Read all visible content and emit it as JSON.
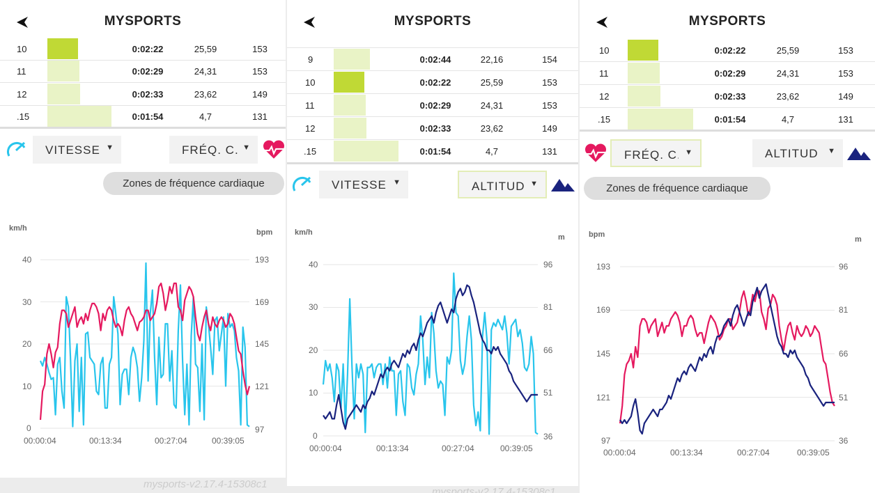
{
  "app_title": "MYSPORTS",
  "version": "mysports-v2.17.4-15308c1",
  "screens": [
    {
      "rows": [
        {
          "num": "10",
          "time": "0:02:22",
          "speed": "25,59",
          "hr": "153",
          "bar": 0.4,
          "hi": true
        },
        {
          "num": "11",
          "time": "0:02:29",
          "speed": "24,31",
          "hr": "153",
          "bar": 0.42,
          "hi": false
        },
        {
          "num": "12",
          "time": "0:02:33",
          "speed": "23,62",
          "hr": "149",
          "bar": 0.43,
          "hi": false
        },
        {
          "num": ".15",
          "time": "0:01:54",
          "speed": "4,7",
          "hr": "131",
          "bar": 0.84,
          "hi": false
        }
      ],
      "left_select": "VITESSE",
      "right_select": "FRÉQ. C.",
      "zones_button": "Zones de fréquence cardiaque",
      "chart_data": {
        "type": "line",
        "left_unit": "km/h",
        "right_unit": "bpm",
        "left_ticks": [
          "40",
          "30",
          "20",
          "10",
          "0"
        ],
        "right_ticks": [
          "193",
          "169",
          "145",
          "121",
          "97"
        ],
        "x_ticks": [
          "00:00:04",
          "00:13:34",
          "00:27:04",
          "00:39:05"
        ],
        "series": [
          {
            "color": "#29c5ec",
            "axis": "left",
            "values": [
              0.4,
              0.37,
              0.42,
              0.38,
              0.33,
              0.29,
              0.3,
              0.08,
              0.38,
              0.42,
              0.22,
              0.12,
              0.78,
              0.72,
              0.4,
              0.01,
              0.4,
              0.5,
              0.1,
              0.42,
              0.02,
              0.56,
              0.57,
              0.42,
              0.4,
              0.38,
              0.22,
              0.2,
              0.38,
              0.42,
              0.12,
              0.12,
              0.38,
              0.42,
              0.78,
              0.68,
              0.56,
              0.14,
              0.32,
              0.35,
              0.35,
              0.2,
              0.42,
              0.48,
              0.44,
              0.36,
              0.16,
              0.3,
              0.52,
              0.98,
              0.28,
              0.68,
              0.82,
              0.42,
              0.14,
              0.54,
              0.3,
              0.32,
              0.62,
              0.62,
              0.28,
              0.46,
              0.14,
              0.12,
              0.58,
              0.85,
              0.4,
              0.08,
              0.38,
              0.02,
              0.55,
              0.78,
              0.38,
              0.36,
              0.1,
              0.5,
              0.05,
              0.72,
              0.62,
              0.48,
              0.32,
              0.64,
              0.66,
              0.46,
              0.56,
              0.66,
              0.25,
              0.68,
              0.6,
              0.62,
              0.58,
              0.42,
              0.34,
              0.02,
              0.6,
              0.48,
              0.02,
              0.01
            ]
          },
          {
            "color": "#e5195f",
            "axis": "right",
            "values": [
              0.05,
              0.22,
              0.26,
              0.44,
              0.5,
              0.44,
              0.36,
              0.45,
              0.48,
              0.62,
              0.7,
              0.7,
              0.68,
              0.6,
              0.64,
              0.68,
              0.72,
              0.6,
              0.64,
              0.66,
              0.62,
              0.68,
              0.64,
              0.7,
              0.74,
              0.74,
              0.72,
              0.68,
              0.58,
              0.68,
              0.64,
              0.7,
              0.72,
              0.7,
              0.64,
              0.6,
              0.62,
              0.6,
              0.55,
              0.64,
              0.7,
              0.72,
              0.68,
              0.66,
              0.62,
              0.58,
              0.63,
              0.64,
              0.66,
              0.7,
              0.7,
              0.64,
              0.66,
              0.68,
              0.74,
              0.84,
              0.86,
              0.8,
              0.7,
              0.76,
              0.84,
              0.8,
              0.86,
              0.86,
              0.72,
              0.7,
              0.64,
              0.76,
              0.8,
              0.84,
              0.82,
              0.78,
              0.66,
              0.56,
              0.52,
              0.6,
              0.66,
              0.7,
              0.62,
              0.58,
              0.66,
              0.62,
              0.6,
              0.64,
              0.66,
              0.64,
              0.6,
              0.62,
              0.68,
              0.66,
              0.62,
              0.54,
              0.46,
              0.44,
              0.34,
              0.26,
              0.2,
              0.25
            ]
          }
        ]
      }
    },
    {
      "rows": [
        {
          "num": "9",
          "time": "0:02:44",
          "speed": "22,16",
          "hr": "154",
          "bar": 0.47,
          "hi": false
        },
        {
          "num": "10",
          "time": "0:02:22",
          "speed": "25,59",
          "hr": "153",
          "bar": 0.4,
          "hi": true
        },
        {
          "num": "11",
          "time": "0:02:29",
          "speed": "24,31",
          "hr": "153",
          "bar": 0.42,
          "hi": false
        },
        {
          "num": "12",
          "time": "0:02:33",
          "speed": "23,62",
          "hr": "149",
          "bar": 0.43,
          "hi": false
        },
        {
          "num": ".15",
          "time": "0:01:54",
          "speed": "4,7",
          "hr": "131",
          "bar": 0.84,
          "hi": false
        }
      ],
      "left_select": "VITESSE",
      "right_select": "ALTITUD",
      "chart_data": {
        "type": "line",
        "left_unit": "km/h",
        "right_unit": "m",
        "left_ticks": [
          "40",
          "30",
          "20",
          "10",
          "0"
        ],
        "right_ticks": [
          "96",
          "81",
          "66",
          "51",
          "36"
        ],
        "x_ticks": [
          "00:00:04",
          "00:13:34",
          "00:27:04",
          "00:39:05"
        ],
        "series": [
          {
            "color": "#29c5ec",
            "axis": "left",
            "values": [
              0.3,
              0.44,
              0.38,
              0.42,
              0.34,
              0.2,
              0.42,
              0.38,
              0.16,
              0.42,
              0.06,
              0.36,
              0.8,
              0.4,
              0.1,
              0.42,
              0.34,
              0.42,
              0.36,
              0.02,
              0.4,
              0.4,
              0.42,
              0.34,
              0.4,
              0.42,
              0.42,
              0.3,
              0.42,
              0.28,
              0.46,
              0.38,
              0.38,
              0.12,
              0.36,
              0.38,
              0.2,
              0.12,
              0.42,
              0.4,
              0.28,
              0.24,
              0.36,
              0.42,
              0.7,
              0.56,
              0.3,
              0.46,
              0.34,
              0.72,
              0.6,
              0.38,
              0.28,
              0.32,
              0.3,
              0.12,
              0.46,
              0.42,
              0.5,
              0.95,
              0.72,
              0.7,
              0.44,
              0.36,
              0.42,
              0.58,
              0.7,
              0.56,
              0.18,
              0.06,
              0.14,
              0.03,
              0.58,
              0.72,
              0.56,
              0.01,
              0.62,
              0.66,
              0.64,
              0.68,
              0.65,
              0.62,
              0.7,
              0.6,
              0.42,
              0.64,
              0.66,
              0.68,
              0.58,
              0.62,
              0.54,
              0.4,
              0.38,
              0.42,
              0.58,
              0.48,
              0.02,
              0.01
            ]
          },
          {
            "color": "#1a237e",
            "axis": "right",
            "values": [
              0.12,
              0.1,
              0.12,
              0.14,
              0.1,
              0.1,
              0.18,
              0.24,
              0.16,
              0.08,
              0.04,
              0.1,
              0.12,
              0.14,
              0.16,
              0.18,
              0.16,
              0.14,
              0.18,
              0.16,
              0.2,
              0.22,
              0.26,
              0.24,
              0.28,
              0.32,
              0.36,
              0.34,
              0.38,
              0.4,
              0.38,
              0.42,
              0.44,
              0.42,
              0.4,
              0.44,
              0.48,
              0.46,
              0.5,
              0.48,
              0.52,
              0.54,
              0.5,
              0.56,
              0.6,
              0.58,
              0.62,
              0.66,
              0.68,
              0.7,
              0.66,
              0.72,
              0.76,
              0.78,
              0.74,
              0.7,
              0.66,
              0.7,
              0.74,
              0.72,
              0.8,
              0.84,
              0.86,
              0.82,
              0.84,
              0.88,
              0.87,
              0.82,
              0.78,
              0.72,
              0.66,
              0.6,
              0.56,
              0.54,
              0.5,
              0.5,
              0.48,
              0.52,
              0.5,
              0.52,
              0.48,
              0.46,
              0.44,
              0.42,
              0.38,
              0.36,
              0.32,
              0.3,
              0.28,
              0.26,
              0.24,
              0.22,
              0.2,
              0.22,
              0.24,
              0.24,
              0.24,
              0.24
            ]
          }
        ]
      }
    },
    {
      "rows": [
        {
          "num": "10",
          "time": "0:02:22",
          "speed": "25,59",
          "hr": "153",
          "bar": 0.4,
          "hi": true
        },
        {
          "num": "11",
          "time": "0:02:29",
          "speed": "24,31",
          "hr": "153",
          "bar": 0.42,
          "hi": false
        },
        {
          "num": "12",
          "time": "0:02:33",
          "speed": "23,62",
          "hr": "149",
          "bar": 0.43,
          "hi": false
        },
        {
          "num": ".15",
          "time": "0:01:54",
          "speed": "4,7",
          "hr": "131",
          "bar": 0.84,
          "hi": false
        }
      ],
      "left_select": "FRÉQ. C.",
      "right_select": "ALTITUD",
      "zones_button": "Zones de fréquence cardiaque",
      "chart_data": {
        "type": "line",
        "left_unit": "bpm",
        "right_unit": "m",
        "left_ticks": [
          "193",
          "169",
          "145",
          "121",
          "97"
        ],
        "right_ticks": [
          "96",
          "81",
          "66",
          "51",
          "36"
        ],
        "x_ticks": [
          "00:00:04",
          "00:13:34",
          "00:27:04",
          "00:39:05"
        ],
        "series": [
          {
            "color": "#e5195f",
            "axis": "left",
            "values": [
              0.1,
              0.2,
              0.38,
              0.44,
              0.46,
              0.5,
              0.42,
              0.54,
              0.48,
              0.66,
              0.7,
              0.7,
              0.68,
              0.62,
              0.66,
              0.68,
              0.7,
              0.6,
              0.64,
              0.68,
              0.62,
              0.66,
              0.66,
              0.7,
              0.72,
              0.74,
              0.72,
              0.68,
              0.6,
              0.66,
              0.66,
              0.7,
              0.72,
              0.7,
              0.64,
              0.6,
              0.62,
              0.62,
              0.56,
              0.62,
              0.68,
              0.72,
              0.7,
              0.68,
              0.64,
              0.58,
              0.6,
              0.64,
              0.66,
              0.7,
              0.7,
              0.64,
              0.66,
              0.68,
              0.74,
              0.82,
              0.86,
              0.8,
              0.72,
              0.76,
              0.84,
              0.8,
              0.86,
              0.86,
              0.74,
              0.7,
              0.64,
              0.76,
              0.78,
              0.84,
              0.82,
              0.78,
              0.66,
              0.58,
              0.52,
              0.6,
              0.66,
              0.68,
              0.62,
              0.58,
              0.66,
              0.62,
              0.6,
              0.62,
              0.66,
              0.64,
              0.6,
              0.62,
              0.66,
              0.64,
              0.62,
              0.54,
              0.46,
              0.44,
              0.36,
              0.28,
              0.22,
              0.2
            ]
          },
          {
            "color": "#1a237e",
            "axis": "right",
            "values": [
              0.12,
              0.1,
              0.12,
              0.1,
              0.12,
              0.14,
              0.2,
              0.24,
              0.16,
              0.06,
              0.04,
              0.1,
              0.12,
              0.14,
              0.16,
              0.18,
              0.16,
              0.14,
              0.18,
              0.18,
              0.2,
              0.22,
              0.26,
              0.24,
              0.28,
              0.32,
              0.36,
              0.34,
              0.38,
              0.4,
              0.38,
              0.42,
              0.44,
              0.42,
              0.4,
              0.44,
              0.48,
              0.46,
              0.5,
              0.48,
              0.52,
              0.54,
              0.5,
              0.56,
              0.6,
              0.6,
              0.62,
              0.66,
              0.68,
              0.7,
              0.66,
              0.72,
              0.76,
              0.78,
              0.74,
              0.7,
              0.66,
              0.7,
              0.74,
              0.72,
              0.8,
              0.84,
              0.88,
              0.82,
              0.86,
              0.88,
              0.9,
              0.84,
              0.78,
              0.72,
              0.66,
              0.6,
              0.56,
              0.54,
              0.5,
              0.5,
              0.48,
              0.52,
              0.5,
              0.52,
              0.48,
              0.46,
              0.44,
              0.42,
              0.38,
              0.36,
              0.32,
              0.3,
              0.28,
              0.26,
              0.24,
              0.22,
              0.2,
              0.22,
              0.22,
              0.22,
              0.22,
              0.22
            ]
          }
        ]
      }
    }
  ],
  "icons": {
    "back": "back-arrow-icon",
    "speed": "speedometer-icon",
    "heart": "heart-rate-icon",
    "altitude": "mountain-icon"
  },
  "colors": {
    "speed": "#29c5ec",
    "heart": "#e5195f",
    "altitude": "#1a237e",
    "bar_highlight": "#c0d935",
    "bar_normal": "#e9f3c6"
  }
}
